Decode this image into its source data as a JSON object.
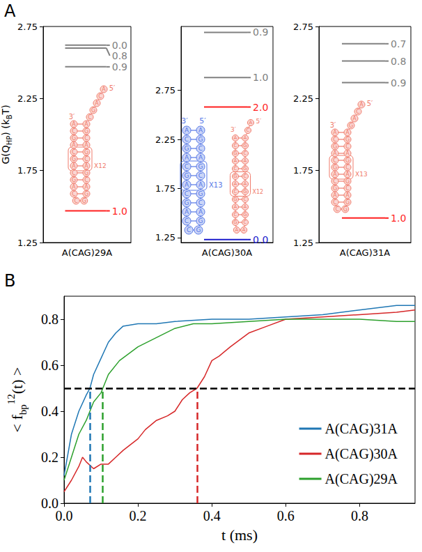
{
  "chart_data": [
    {
      "panel": "A",
      "type": "levels",
      "xlabel": "A(CAG)29A",
      "ylabel": [
        {
          "text": "G(Q"
        },
        {
          "text": "HP",
          "sub": true
        },
        {
          "text": ") (k"
        },
        {
          "text": "B",
          "sub": true
        },
        {
          "text": "T)"
        }
      ],
      "ylim": [
        1.25,
        2.75
      ],
      "yticks": [
        1.25,
        1.75,
        2.25,
        2.75
      ],
      "grid": false,
      "levels": [
        {
          "value": 2.62,
          "label": "0.0",
          "color": "#808080"
        },
        {
          "value": 2.6,
          "label": "0.8",
          "color": "#808080"
        },
        {
          "value": 2.47,
          "label": "0.9",
          "color": "#808080"
        },
        {
          "value": 1.47,
          "label": "1.0",
          "color": "#ff1f1f"
        }
      ],
      "structures": [
        {
          "color": "#f07b6b",
          "three_prime": "3′",
          "five_prime": "5′",
          "strand_3": [
            "A",
            "C",
            "G",
            "A",
            "C",
            "G",
            "A",
            "C",
            "G",
            "A",
            "C"
          ],
          "strand_5": [
            "A",
            "G",
            "C",
            "A",
            "G",
            "C",
            "A",
            "G",
            "C",
            "A",
            "G"
          ],
          "loop": [
            "C",
            "G"
          ],
          "tail": [
            "C",
            "G",
            "A",
            "C",
            "A"
          ],
          "repeat": "X12"
        }
      ]
    },
    {
      "panel": "A",
      "type": "levels",
      "xlabel": "A(CAG)30A",
      "ylim": [
        1.2,
        3.4
      ],
      "yticks": [
        1.25,
        1.75,
        2.25,
        2.75
      ],
      "grid": false,
      "levels": [
        {
          "value": 3.34,
          "label": "0.9",
          "color": "#808080"
        },
        {
          "value": 2.88,
          "label": "1.0",
          "color": "#808080"
        },
        {
          "value": 2.58,
          "label": "2.0",
          "color": "#ff1f1f"
        },
        {
          "value": 1.23,
          "label": "0.0",
          "color": "#1a1acc"
        }
      ],
      "structures": [
        {
          "color": "#5577e6",
          "three_prime": "3′",
          "five_prime": "5′",
          "strand_3": [
            "A",
            "C",
            "G",
            "A",
            "C",
            "G",
            "A",
            "C",
            "G",
            "A",
            "C"
          ],
          "strand_5": [
            "A",
            "G",
            "C",
            "A",
            "G",
            "C",
            "A",
            "G",
            "C",
            "A",
            "G"
          ],
          "loop": [
            "C",
            "G"
          ],
          "repeat": "X13"
        },
        {
          "color": "#f07b6b",
          "three_prime": "3′",
          "five_prime": "5′",
          "strand_3": [
            "A",
            "C",
            "G",
            "A",
            "C",
            "G",
            "A",
            "C",
            "G",
            "A",
            "C",
            "G"
          ],
          "strand_5": [
            "A",
            "G",
            "C",
            "A",
            "G",
            "C",
            "A",
            "G",
            "C",
            "A",
            "G",
            "C"
          ],
          "loop": [
            "A",
            "A"
          ],
          "tail": [
            "C",
            "A"
          ],
          "repeat": "X12"
        }
      ]
    },
    {
      "panel": "A",
      "type": "levels",
      "xlabel": "A(CAG)31A",
      "ylim": [
        1.25,
        2.75
      ],
      "yticks": [
        1.25,
        1.75,
        2.25,
        2.75
      ],
      "grid": false,
      "levels": [
        {
          "value": 2.63,
          "label": "0.7",
          "color": "#808080"
        },
        {
          "value": 2.51,
          "label": "0.8",
          "color": "#808080"
        },
        {
          "value": 2.36,
          "label": "0.9",
          "color": "#808080"
        },
        {
          "value": 1.42,
          "label": "1.0",
          "color": "#ff1f1f"
        }
      ],
      "structures": [
        {
          "color": "#f07b6b",
          "three_prime": "3′",
          "five_prime": "5′",
          "strand_3": [
            "A",
            "C",
            "G",
            "A",
            "C",
            "G",
            "A",
            "C",
            "G",
            "A",
            "C"
          ],
          "strand_5": [
            "A",
            "G",
            "C",
            "A",
            "G",
            "C",
            "A",
            "G",
            "C",
            "A",
            "G"
          ],
          "loop": [
            "C",
            "G"
          ],
          "tail": [
            "G",
            "A",
            "C",
            "A"
          ],
          "repeat": "X13"
        }
      ]
    },
    {
      "panel": "B",
      "type": "line",
      "xlabel": "t (ms)",
      "ylabel": [
        {
          "text": "< f"
        },
        {
          "text": "bp",
          "sub": true
        },
        {
          "text": "12",
          "sup": true
        },
        {
          "text": "(t) >"
        }
      ],
      "xlim": [
        0,
        0.95
      ],
      "xticks": [
        {
          "value": 0,
          "label": "0.0"
        },
        0.2,
        0.4,
        0.6,
        0.8
      ],
      "ylim": [
        0,
        0.9
      ],
      "yticks": [
        {
          "value": 0,
          "label": "0.0"
        },
        0.2,
        0.4,
        0.6,
        0.8
      ],
      "grid": false,
      "legend": "lower right",
      "half_level": 0.5,
      "series": [
        {
          "name": "A(CAG)31A",
          "color": "#1f77b4",
          "t_half": 0.07,
          "x": [
            0,
            0.02,
            0.04,
            0.06,
            0.07,
            0.08,
            0.1,
            0.12,
            0.14,
            0.16,
            0.2,
            0.25,
            0.3,
            0.4,
            0.5,
            0.6,
            0.7,
            0.8,
            0.9,
            0.95
          ],
          "values": [
            0.12,
            0.3,
            0.4,
            0.47,
            0.5,
            0.56,
            0.63,
            0.7,
            0.74,
            0.77,
            0.78,
            0.78,
            0.79,
            0.8,
            0.8,
            0.81,
            0.82,
            0.84,
            0.86,
            0.86
          ]
        },
        {
          "name": "A(CAG)30A",
          "color": "#d62728",
          "t_half": 0.36,
          "x": [
            0,
            0.02,
            0.04,
            0.05,
            0.06,
            0.08,
            0.1,
            0.12,
            0.14,
            0.16,
            0.2,
            0.22,
            0.25,
            0.28,
            0.3,
            0.32,
            0.34,
            0.36,
            0.38,
            0.4,
            0.42,
            0.45,
            0.5,
            0.55,
            0.6,
            0.7,
            0.8,
            0.9,
            0.95
          ],
          "values": [
            0.05,
            0.1,
            0.16,
            0.2,
            0.18,
            0.15,
            0.17,
            0.17,
            0.2,
            0.23,
            0.28,
            0.32,
            0.36,
            0.38,
            0.4,
            0.45,
            0.48,
            0.5,
            0.55,
            0.62,
            0.64,
            0.68,
            0.74,
            0.77,
            0.8,
            0.81,
            0.82,
            0.83,
            0.84
          ]
        },
        {
          "name": "A(CAG)29A",
          "color": "#2ca02c",
          "t_half": 0.105,
          "x": [
            0,
            0.02,
            0.04,
            0.06,
            0.08,
            0.1,
            0.105,
            0.12,
            0.15,
            0.2,
            0.25,
            0.3,
            0.35,
            0.4,
            0.5,
            0.6,
            0.7,
            0.8,
            0.9,
            0.95
          ],
          "values": [
            0.1,
            0.2,
            0.3,
            0.36,
            0.44,
            0.48,
            0.5,
            0.56,
            0.62,
            0.68,
            0.72,
            0.76,
            0.78,
            0.78,
            0.79,
            0.8,
            0.8,
            0.8,
            0.79,
            0.79
          ]
        }
      ]
    }
  ]
}
